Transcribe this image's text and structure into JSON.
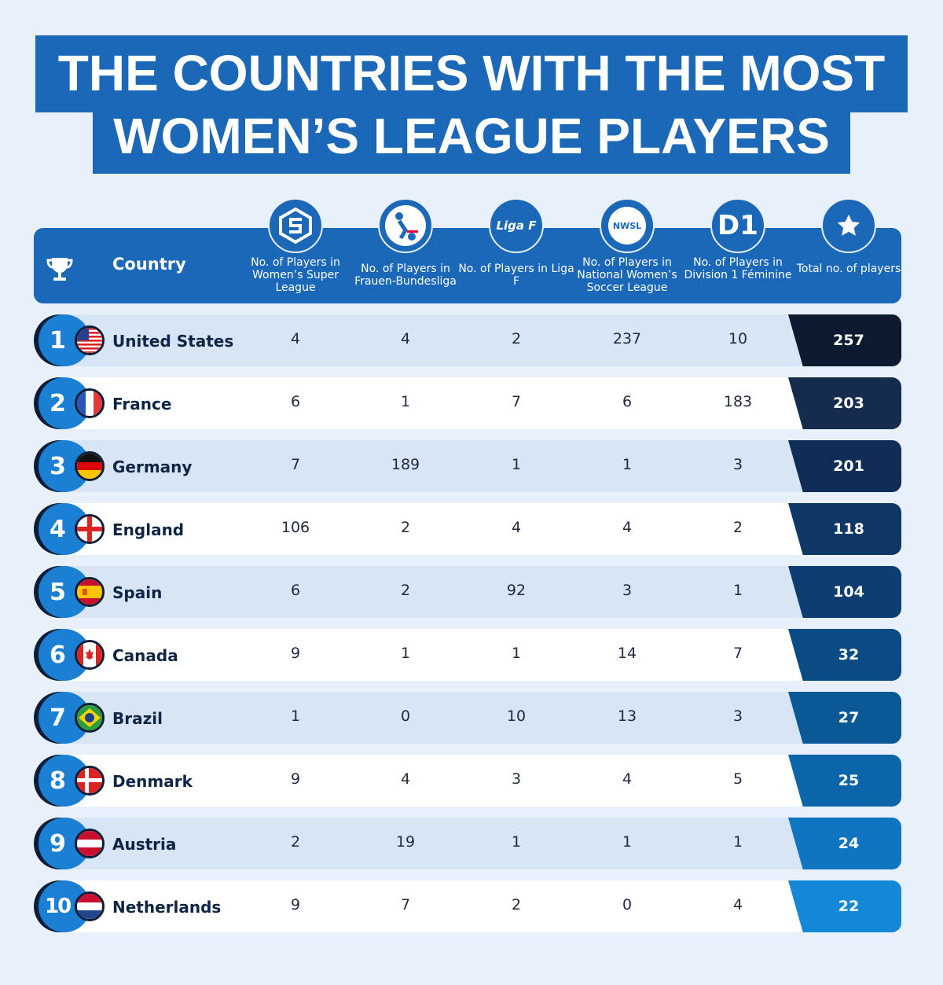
{
  "title": {
    "line1": "THE COUNTRIES WITH THE MOST",
    "line2": "WOMEN’S LEAGUE PLAYERS"
  },
  "header": {
    "country": "Country",
    "columns": [
      {
        "label": "No. of Players in Women’s Super League",
        "logo_text": "",
        "icon": "wsl-logo-icon"
      },
      {
        "label": "No. of Players in Frauen-Bundesliga",
        "logo_text": "",
        "icon": "bundesliga-logo-icon"
      },
      {
        "label": "No. of Players in Liga F",
        "logo_text": "Liga F",
        "icon": "liga-f-logo-icon"
      },
      {
        "label": "No. of Players in National Women’s Soccer League",
        "logo_text": "NWSL",
        "icon": "nwsl-logo-icon"
      },
      {
        "label": "No. of Players in Division 1 Féminine",
        "logo_text": "D1",
        "icon": "d1-logo-icon"
      },
      {
        "label": "Total no. of players",
        "logo_text": "",
        "icon": "star-icon"
      }
    ]
  },
  "colors": {
    "primary": "#1b67b8",
    "rank_circle": "#1b7fd4",
    "total_gradient": [
      "#0e1a2f",
      "#162c4f",
      "#102d57",
      "#0f3866",
      "#0d3d71",
      "#0a4a85",
      "#0b5897",
      "#0c64a9",
      "#0f75c0",
      "#1488d6"
    ]
  },
  "chart_data": {
    "type": "table",
    "columns": [
      "Country",
      "No. of Players in Women’s Super League",
      "No. of Players in Frauen-Bundesliga",
      "No. of Players in Liga F",
      "No. of Players in National Women’s Soccer League",
      "No. of Players in Division 1 Féminine",
      "Total no. of players"
    ],
    "rows": [
      {
        "rank": "1",
        "country": "United States",
        "flag": "us-flag-icon",
        "values": [
          "4",
          "4",
          "2",
          "237",
          "10"
        ],
        "total": "257"
      },
      {
        "rank": "2",
        "country": "France",
        "flag": "france-flag-icon",
        "values": [
          "6",
          "1",
          "7",
          "6",
          "183"
        ],
        "total": "203"
      },
      {
        "rank": "3",
        "country": "Germany",
        "flag": "germany-flag-icon",
        "values": [
          "7",
          "189",
          "1",
          "1",
          "3"
        ],
        "total": "201"
      },
      {
        "rank": "4",
        "country": "England",
        "flag": "england-flag-icon",
        "values": [
          "106",
          "2",
          "4",
          "4",
          "2"
        ],
        "total": "118"
      },
      {
        "rank": "5",
        "country": "Spain",
        "flag": "spain-flag-icon",
        "values": [
          "6",
          "2",
          "92",
          "3",
          "1"
        ],
        "total": "104"
      },
      {
        "rank": "6",
        "country": "Canada",
        "flag": "canada-flag-icon",
        "values": [
          "9",
          "1",
          "1",
          "14",
          "7"
        ],
        "total": "32"
      },
      {
        "rank": "7",
        "country": "Brazil",
        "flag": "brazil-flag-icon",
        "values": [
          "1",
          "0",
          "10",
          "13",
          "3"
        ],
        "total": "27"
      },
      {
        "rank": "8",
        "country": "Denmark",
        "flag": "denmark-flag-icon",
        "values": [
          "9",
          "4",
          "3",
          "4",
          "5"
        ],
        "total": "25"
      },
      {
        "rank": "9",
        "country": "Austria",
        "flag": "austria-flag-icon",
        "values": [
          "2",
          "19",
          "1",
          "1",
          "1"
        ],
        "total": "24"
      },
      {
        "rank": "10",
        "country": "Netherlands",
        "flag": "netherlands-flag-icon",
        "values": [
          "9",
          "7",
          "2",
          "0",
          "4"
        ],
        "total": "22"
      }
    ]
  }
}
